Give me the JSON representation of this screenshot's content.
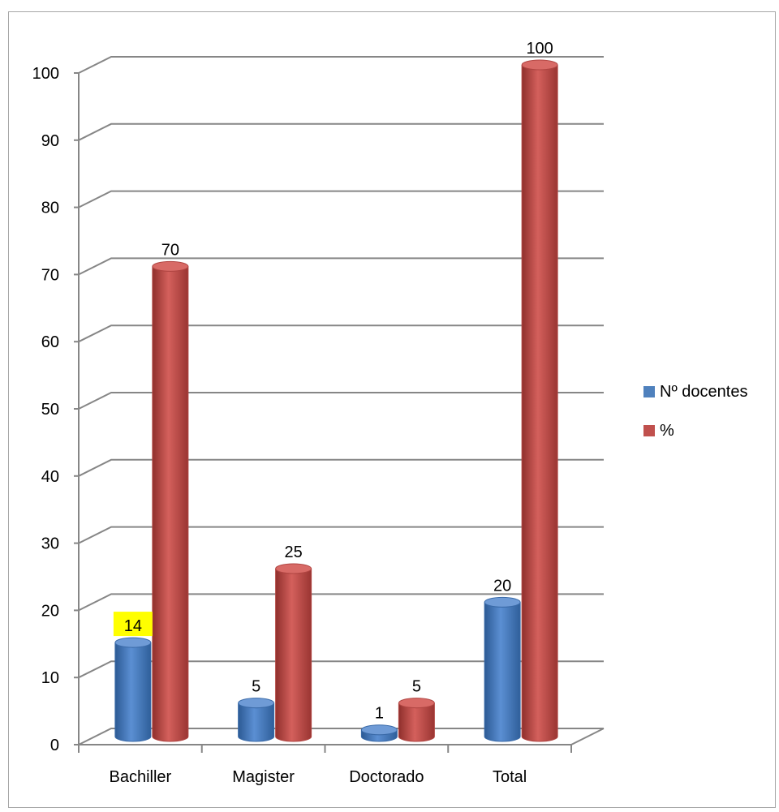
{
  "chart_data": {
    "type": "bar",
    "style": "3d-cylinder",
    "categories": [
      "Bachiller",
      "Magister",
      "Doctorado",
      "Total"
    ],
    "series": [
      {
        "name": "Nº docentes",
        "values": [
          14,
          5,
          1,
          20
        ],
        "color": "#4f81bd",
        "labels": [
          "14",
          "5",
          "1",
          "20"
        ]
      },
      {
        "name": "%",
        "values": [
          70,
          25,
          5,
          100
        ],
        "color": "#c0504d",
        "labels": [
          "70",
          "25",
          "5",
          "100"
        ]
      }
    ],
    "ylim": [
      0,
      100
    ],
    "yticks": [
      0,
      10,
      20,
      30,
      40,
      50,
      60,
      70,
      80,
      90,
      100
    ],
    "ytick_labels": [
      "0",
      "10",
      "20",
      "30",
      "40",
      "50",
      "60",
      "70",
      "80",
      "90",
      "100"
    ],
    "grid": true,
    "legend_position": "right",
    "highlight": {
      "series": 0,
      "category": 0,
      "color": "#ffff00"
    },
    "title": "",
    "xlabel": "",
    "ylabel": ""
  }
}
